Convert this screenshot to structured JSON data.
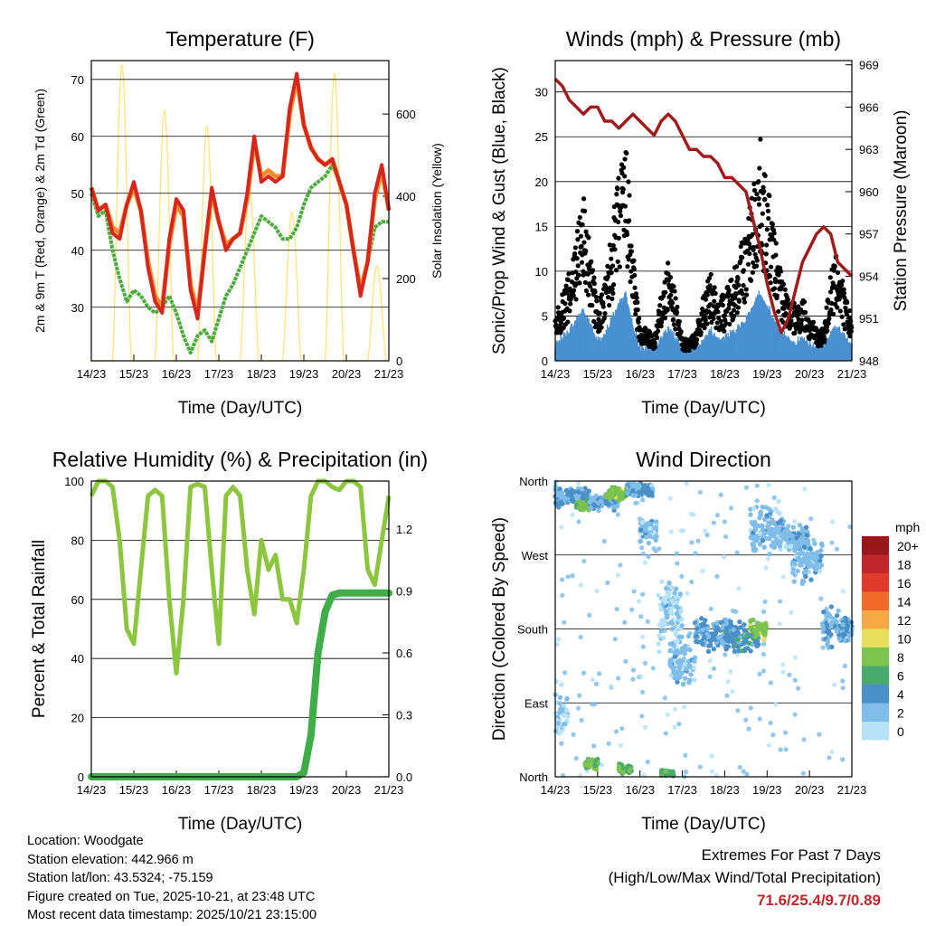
{
  "chart_data": [
    {
      "type": "line",
      "title": "Temperature (F)",
      "xlabel": "Time (Day/UTC)",
      "ylabel": "2m & 9m T (Red, Orange) & 2m Td (Green)",
      "ylabel_right": "Solar Insolation (Yellow)",
      "x_ticks": [
        "14/23",
        "15/23",
        "16/23",
        "17/23",
        "18/23",
        "19/23",
        "20/23",
        "21/23"
      ],
      "y_ticks": [
        30,
        40,
        50,
        60,
        70
      ],
      "y_right_ticks": [
        0,
        200,
        400,
        600
      ],
      "ylim": [
        20.6,
        73.3
      ],
      "y_right_lim": [
        0,
        730
      ],
      "x_step_days": 0.1667,
      "series": [
        {
          "name": "2m T",
          "color": "#d7261e",
          "values": [
            51,
            47,
            48,
            43,
            42,
            48,
            52,
            47,
            37,
            31,
            29,
            42,
            49,
            47,
            33,
            28,
            40,
            51,
            45,
            40,
            42,
            43,
            50,
            60,
            52,
            53,
            52,
            53,
            65,
            71,
            62,
            58,
            56,
            55,
            56,
            52,
            48,
            40,
            32,
            38,
            50,
            55,
            47
          ]
        },
        {
          "name": "9m T",
          "color": "#f58a2a",
          "values": [
            51,
            47,
            48,
            44,
            43,
            48,
            51,
            47,
            38,
            32,
            30,
            41,
            48,
            46,
            34,
            29,
            40,
            50,
            45,
            41,
            42,
            43,
            49,
            59,
            53,
            54,
            53,
            53,
            64,
            70,
            62,
            58,
            56,
            55,
            56,
            52,
            48,
            40,
            33,
            38,
            49,
            54,
            47
          ]
        },
        {
          "name": "2m Td",
          "color": "#4aab3c",
          "values": [
            50,
            46,
            47,
            40,
            35,
            31,
            33,
            32,
            30,
            29,
            30,
            32,
            29,
            25,
            22,
            25,
            26,
            24,
            28,
            32,
            34,
            37,
            40,
            43,
            46,
            45,
            44,
            42,
            42,
            44,
            48,
            51,
            52,
            53,
            55,
            52,
            48,
            40,
            33,
            38,
            44,
            45,
            45
          ]
        }
      ],
      "solar": {
        "name": "Solar Insolation",
        "color": "#ffe36e",
        "daily_peaks": [
          720,
          610,
          570,
          420,
          360,
          700,
          230,
          700
        ]
      }
    },
    {
      "type": "scatter",
      "title": "Winds (mph) & Pressure (mb)",
      "xlabel": "Time (Day/UTC)",
      "ylabel": "Sonic/Prop Wind & Gust (Blue, Black)",
      "ylabel_right": "Station Pressure (Maroon)",
      "x_ticks": [
        "14/23",
        "15/23",
        "16/23",
        "17/23",
        "18/23",
        "19/23",
        "20/23",
        "21/23"
      ],
      "y_ticks": [
        0,
        5,
        10,
        15,
        20,
        25,
        30
      ],
      "y_right_ticks": [
        948,
        951,
        954,
        957,
        960,
        963,
        966,
        969
      ],
      "ylim": [
        0,
        33.5
      ],
      "y_right_lim": [
        948,
        969.3
      ],
      "x_step_days": 0.1667,
      "gust_level": [
        4,
        6,
        8,
        12,
        15,
        10,
        5,
        7,
        12,
        17,
        20,
        10,
        3,
        3,
        2,
        6,
        9,
        6,
        2,
        2,
        3,
        6,
        8,
        6,
        6,
        8,
        10,
        12,
        16,
        20,
        16,
        12,
        8,
        6,
        5,
        6,
        4,
        3,
        3,
        8,
        10,
        6,
        4
      ],
      "pressure": [
        968,
        967.5,
        966.5,
        966,
        965.5,
        966,
        966,
        965,
        965,
        964.5,
        965,
        965.5,
        965,
        964.5,
        964,
        965,
        965.5,
        965,
        964,
        963,
        963,
        962.5,
        962.5,
        962,
        961,
        961,
        960.5,
        960,
        958,
        956,
        953.5,
        951.5,
        950,
        951,
        953,
        955,
        956,
        957,
        957.5,
        957,
        955,
        954.5,
        954
      ],
      "colors": {
        "gust": "#000000",
        "wind": "#4a90d0",
        "pressure": "#a01c1c"
      }
    },
    {
      "type": "line",
      "title": "Relative Humidity (%) & Precipitation (in)",
      "xlabel": "Time (Day/UTC)",
      "ylabel": "Percent & Total Rainfall",
      "x_ticks": [
        "14/23",
        "15/23",
        "16/23",
        "17/23",
        "18/23",
        "19/23",
        "20/23",
        "21/23"
      ],
      "y_ticks": [
        0,
        20,
        40,
        60,
        80,
        100
      ],
      "y_right_ticks": [
        "0.0",
        "0.3",
        "0.6",
        "0.9",
        "1.2"
      ],
      "ylim": [
        0,
        100
      ],
      "y_right_lim": [
        0,
        1.432
      ],
      "x_step_days": 0.1667,
      "series": [
        {
          "name": "Relative Humidity",
          "color": "#8cc63f",
          "values": [
            95,
            100,
            100,
            98,
            80,
            50,
            45,
            70,
            95,
            97,
            95,
            60,
            35,
            60,
            98,
            99,
            98,
            70,
            45,
            95,
            98,
            95,
            70,
            55,
            80,
            70,
            75,
            60,
            60,
            52,
            70,
            95,
            100,
            100,
            98,
            97,
            100,
            100,
            98,
            70,
            65,
            80,
            95
          ]
        },
        {
          "name": "Total Precipitation",
          "color": "#3fae49",
          "values": [
            0,
            0,
            0,
            0,
            0,
            0,
            0,
            0,
            0,
            0,
            0,
            0,
            0,
            0,
            0,
            0,
            0,
            0,
            0,
            0,
            0,
            0,
            0,
            0,
            0,
            0,
            0,
            0,
            0,
            0,
            0.02,
            0.2,
            0.6,
            0.8,
            0.88,
            0.89,
            0.89,
            0.89,
            0.89,
            0.89,
            0.89,
            0.89,
            0.89
          ]
        }
      ]
    },
    {
      "type": "scatter",
      "title": "Wind Direction",
      "xlabel": "Time (Day/UTC)",
      "ylabel": "Direction (Colored By Speed)",
      "x_ticks": [
        "14/23",
        "15/23",
        "16/23",
        "17/23",
        "18/23",
        "19/23",
        "20/23",
        "21/23"
      ],
      "y_ticks": [
        "North",
        "East",
        "South",
        "West",
        "North"
      ],
      "ylim": [
        0,
        360
      ],
      "clusters": [
        [
          0,
          0.8,
          340,
          15,
          3
        ],
        [
          0.5,
          0.8,
          330,
          10,
          7
        ],
        [
          0.8,
          1.5,
          335,
          12,
          3
        ],
        [
          1.2,
          1.7,
          345,
          10,
          8
        ],
        [
          1.7,
          2.3,
          350,
          12,
          3
        ],
        [
          2.0,
          2.4,
          300,
          25,
          2
        ],
        [
          2.4,
          3.0,
          200,
          60,
          1
        ],
        [
          2.7,
          3.3,
          140,
          40,
          2
        ],
        [
          3.3,
          4.2,
          175,
          25,
          3
        ],
        [
          4.0,
          4.8,
          170,
          25,
          4
        ],
        [
          4.6,
          5.0,
          180,
          15,
          8
        ],
        [
          4.6,
          5.4,
          300,
          40,
          2
        ],
        [
          5.4,
          6.0,
          290,
          20,
          2
        ],
        [
          5.6,
          6.3,
          260,
          30,
          2
        ],
        [
          6.3,
          7.0,
          180,
          30,
          3
        ],
        [
          0,
          0.3,
          80,
          40,
          1
        ],
        [
          0.7,
          1.0,
          15,
          10,
          7
        ],
        [
          1.5,
          1.8,
          10,
          8,
          7
        ],
        [
          2.5,
          2.8,
          5,
          5,
          6
        ]
      ],
      "legend": {
        "title": "mph",
        "labels": [
          "20+",
          "18",
          "16",
          "14",
          "12",
          "10",
          "8",
          "6",
          "4",
          "2",
          "0"
        ],
        "colors": [
          "#96181c",
          "#c0272d",
          "#e03a2c",
          "#f26a2a",
          "#f9a846",
          "#e8e05a",
          "#7dc44f",
          "#4aaa6e",
          "#4a8fc8",
          "#80bde8",
          "#b7e3f9"
        ]
      }
    }
  ],
  "station": {
    "location": "Location: Woodgate",
    "elevation": "Station elevation: 442.966 m",
    "latlon": "Station lat/lon: 43.5324; -75.159",
    "created": "Figure created on Tue, 2025-10-21, at 23:48 UTC",
    "timestamp": "Most recent data timestamp: 2025/10/21 23:15:00"
  },
  "extremes": {
    "title": "Extremes For Past 7 Days",
    "subtitle": "(High/Low/Max Wind/Total Precipitation)",
    "values": "71.6/25.4/9.7/0.89"
  }
}
